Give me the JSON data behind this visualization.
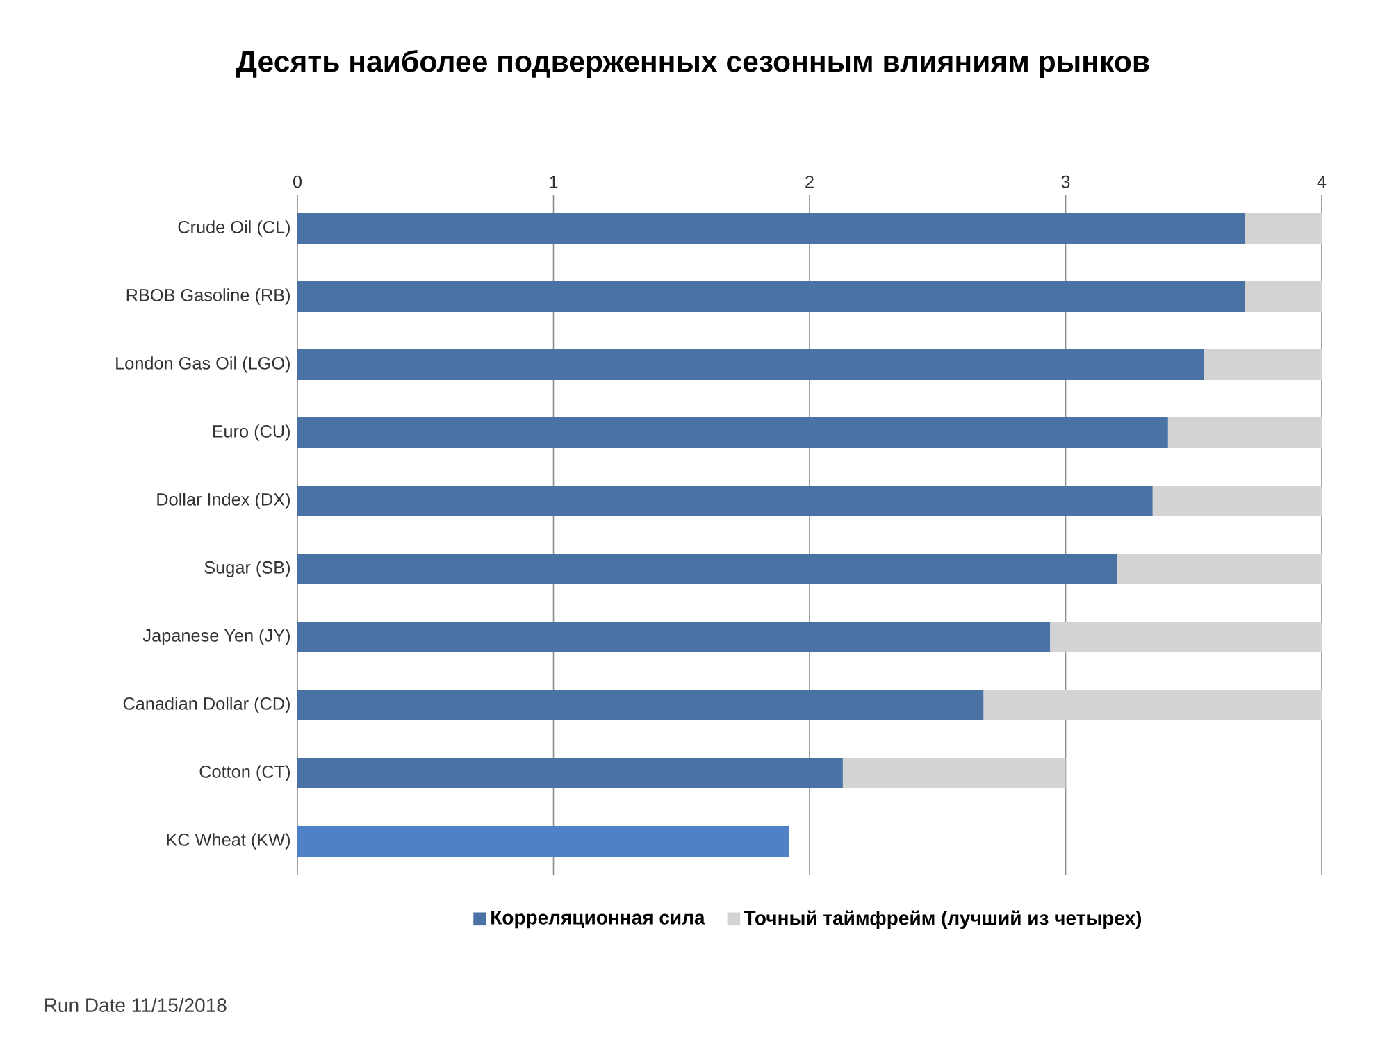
{
  "chart_data": {
    "type": "bar",
    "orientation": "horizontal",
    "stacked": true,
    "title": "Десять наиболее подверженных сезонным влияниям рынков",
    "categories": [
      "Crude Oil (CL)",
      "RBOB Gasoline (RB)",
      "London Gas Oil (LGO)",
      "Euro (CU)",
      "Dollar Index (DX)",
      "Sugar (SB)",
      "Japanese Yen (JY)",
      "Canadian Dollar (CD)",
      "Cotton (CT)",
      "KC Wheat (KW)"
    ],
    "series": [
      {
        "name": "Корреляционная сила",
        "color": "#4a72a4",
        "colors": [
          "#4a72a4",
          "#4a72a4",
          "#4a72a4",
          "#4a72a4",
          "#4a72a4",
          "#4a72a4",
          "#4a72a4",
          "#4a72a4",
          "#4a72a4",
          "#4f81c7"
        ],
        "values": [
          3.7,
          3.7,
          3.54,
          3.4,
          3.34,
          3.2,
          2.94,
          2.68,
          2.13,
          1.92
        ]
      },
      {
        "name": "Точный таймфрейм (лучший из четырех)",
        "color": "#d3d3d3",
        "values": [
          0.3,
          0.3,
          0.46,
          0.6,
          0.66,
          0.8,
          1.06,
          1.32,
          0.87,
          null
        ]
      }
    ],
    "xlim": [
      0,
      4
    ],
    "xticks": [
      0,
      1,
      2,
      3,
      4
    ],
    "grid": "x",
    "legend": "bottom",
    "annotations": [
      "Run Date  11/15/2018"
    ]
  }
}
